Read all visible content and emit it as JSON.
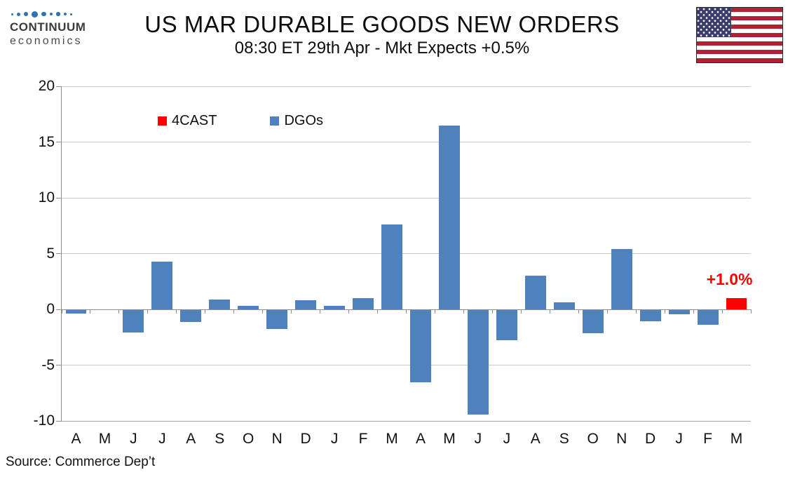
{
  "brand": {
    "name_top": "CONTINUUM",
    "name_bottom": "economics",
    "dot_color": "#2e74b5"
  },
  "header": {
    "title": "US MAR DURABLE GOODS NEW ORDERS",
    "subtitle": "08:30 ET 29th Apr - Mkt Expects +0.5%"
  },
  "flag": {
    "country": "United States"
  },
  "legend": {
    "items": [
      {
        "label": "4CAST",
        "color": "#ff0000"
      },
      {
        "label": "DGOs",
        "color": "#4f81bd"
      }
    ]
  },
  "annotation": {
    "forecast_label": "+1.0%",
    "color": "#ff0000"
  },
  "source": "Source: Commerce Dep’t",
  "chart_data": {
    "type": "bar",
    "title": "US MAR DURABLE GOODS NEW ORDERS",
    "subtitle": "08:30 ET 29th Apr - Mkt Expects +0.5%",
    "categories": [
      "A",
      "M",
      "J",
      "J",
      "A",
      "S",
      "O",
      "N",
      "D",
      "J",
      "F",
      "M",
      "A",
      "M",
      "J",
      "J",
      "A",
      "S",
      "O",
      "N",
      "D",
      "J",
      "F",
      "M"
    ],
    "series": [
      {
        "name": "DGOs",
        "color": "#4f81bd",
        "values": [
          -0.3,
          0.0,
          -2.0,
          4.3,
          -1.1,
          0.9,
          0.3,
          -1.7,
          0.8,
          0.3,
          1.0,
          7.6,
          -6.5,
          16.5,
          -9.4,
          -2.7,
          3.0,
          0.6,
          -2.1,
          5.4,
          -1.0,
          -0.4,
          -1.3,
          null
        ]
      },
      {
        "name": "4CAST",
        "color": "#ff0000",
        "values": [
          null,
          null,
          null,
          null,
          null,
          null,
          null,
          null,
          null,
          null,
          null,
          null,
          null,
          null,
          null,
          null,
          null,
          null,
          null,
          null,
          null,
          null,
          null,
          1.0
        ]
      }
    ],
    "ylim": [
      -10,
      20
    ],
    "yticks": [
      20,
      15,
      10,
      5,
      0,
      -5,
      -10
    ],
    "xlabel": "",
    "ylabel": "",
    "grid": "horizontal",
    "legend_position": "top-left-inside",
    "annotation": {
      "text": "+1.0%",
      "target_series": "4CAST",
      "target_index": 23
    }
  }
}
